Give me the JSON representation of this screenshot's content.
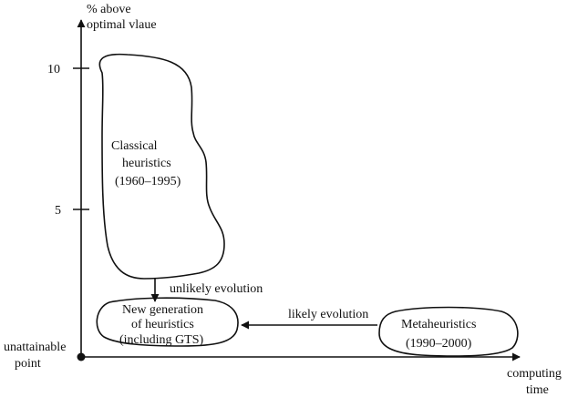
{
  "axes": {
    "y_label_line1": "% above",
    "y_label_line2": "optimal vlaue",
    "x_label_line1": "computing",
    "x_label_line2": "time",
    "y_ticks": [
      "10",
      "5"
    ],
    "origin_label_line1": "unattainable",
    "origin_label_line2": "point"
  },
  "regions": {
    "classical": {
      "line1": "Classical",
      "line2": "heuristics",
      "line3": "(1960–1995)"
    },
    "new_gen": {
      "line1": "New generation",
      "line2": "of heuristics",
      "line3": "(including GTS)"
    },
    "meta": {
      "line1": "Metaheuristics",
      "line2": "(1990–2000)"
    }
  },
  "arrows": {
    "unlikely": "unlikely evolution",
    "likely": "likely evolution"
  }
}
